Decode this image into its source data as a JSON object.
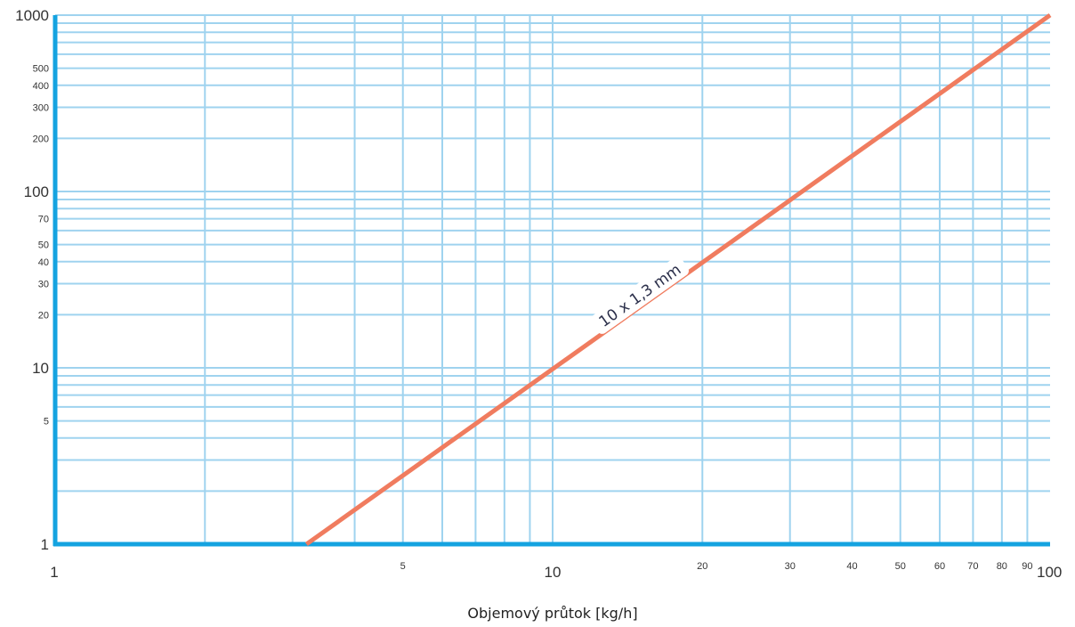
{
  "chart_data": {
    "type": "line",
    "title": "",
    "xlabel": "Objemový průtok [kg/h]",
    "ylabel": "",
    "x_scale": "log",
    "y_scale": "log",
    "xlim": [
      1,
      100
    ],
    "ylim": [
      1,
      1000
    ],
    "grid": true,
    "colors": {
      "grid": "#9fd3ef",
      "axis": "#14a3e0",
      "series": "#f07c5f",
      "text": "#333333"
    },
    "x_ticks": [
      {
        "value": 1,
        "label": "1",
        "major": true
      },
      {
        "value": 5,
        "label": "5",
        "major": false
      },
      {
        "value": 10,
        "label": "10",
        "major": true
      },
      {
        "value": 20,
        "label": "20",
        "major": false
      },
      {
        "value": 30,
        "label": "30",
        "major": false
      },
      {
        "value": 40,
        "label": "40",
        "major": false
      },
      {
        "value": 50,
        "label": "50",
        "major": false
      },
      {
        "value": 60,
        "label": "60",
        "major": false
      },
      {
        "value": 70,
        "label": "70",
        "major": false
      },
      {
        "value": 80,
        "label": "80",
        "major": false
      },
      {
        "value": 90,
        "label": "90",
        "major": false
      },
      {
        "value": 100,
        "label": "100",
        "major": true
      }
    ],
    "y_ticks": [
      {
        "value": 1,
        "label": "1",
        "major": true
      },
      {
        "value": 5,
        "label": "5",
        "major": false
      },
      {
        "value": 10,
        "label": "10",
        "major": true
      },
      {
        "value": 20,
        "label": "20",
        "major": false
      },
      {
        "value": 30,
        "label": "30",
        "major": false
      },
      {
        "value": 40,
        "label": "40",
        "major": false
      },
      {
        "value": 50,
        "label": "50",
        "major": false
      },
      {
        "value": 70,
        "label": "70",
        "major": false
      },
      {
        "value": 100,
        "label": "100",
        "major": true
      },
      {
        "value": 200,
        "label": "200",
        "major": false
      },
      {
        "value": 300,
        "label": "300",
        "major": false
      },
      {
        "value": 400,
        "label": "400",
        "major": false
      },
      {
        "value": 500,
        "label": "500",
        "major": false
      },
      {
        "value": 1000,
        "label": "1000",
        "major": true
      }
    ],
    "series": [
      {
        "name": "10 x 1,3 mm",
        "x": [
          3.2,
          100
        ],
        "y": [
          1,
          1000
        ]
      }
    ]
  }
}
